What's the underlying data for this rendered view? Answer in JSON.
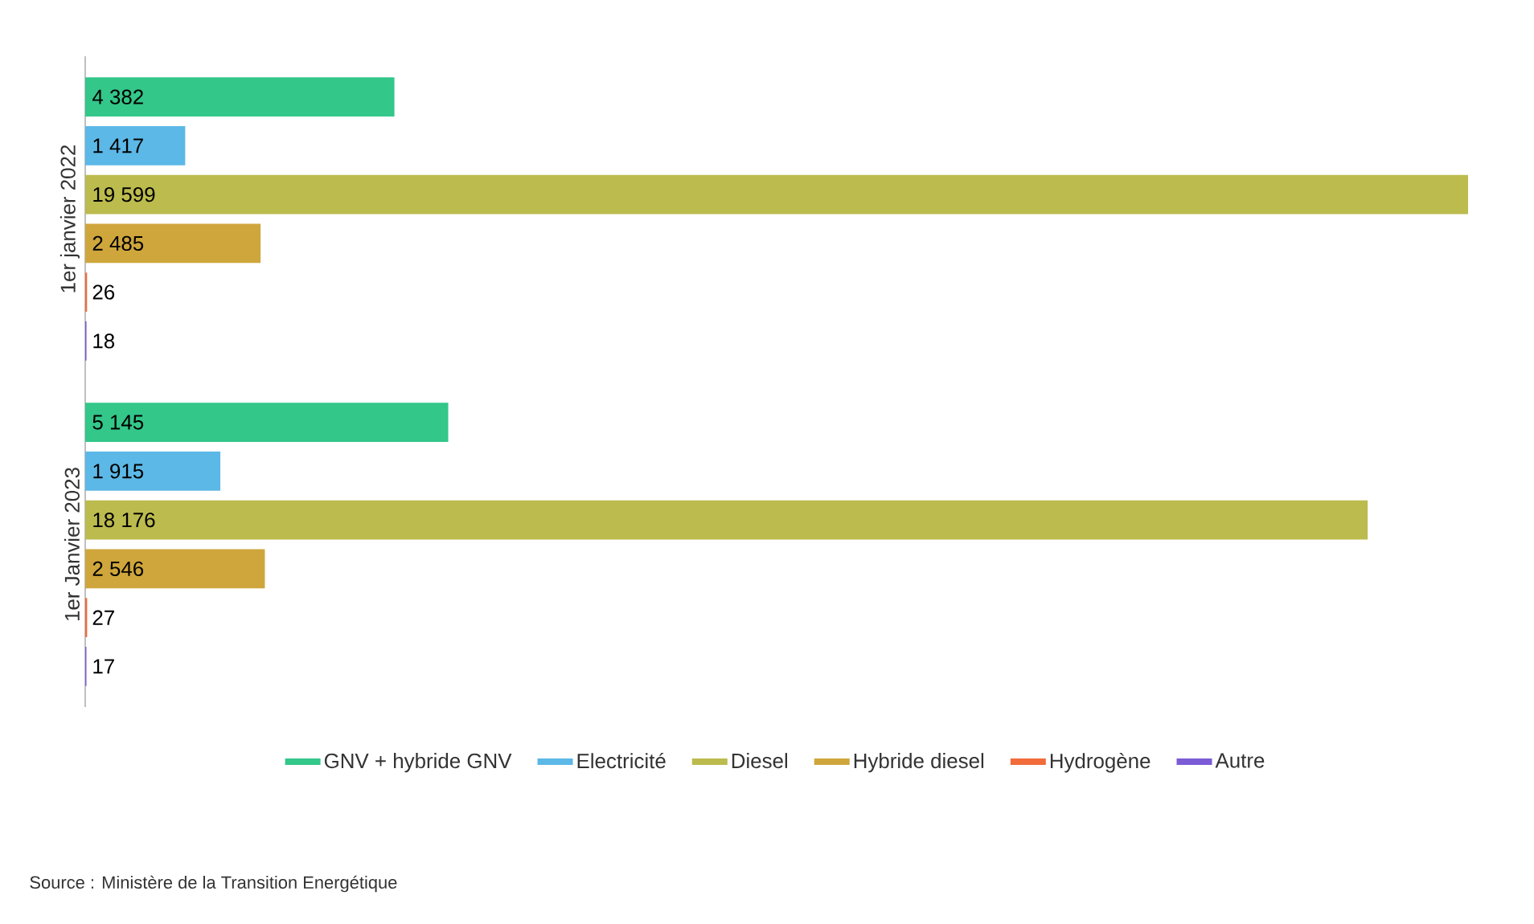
{
  "chart_data": {
    "type": "bar",
    "orientation": "horizontal",
    "categories": [
      "1er janvier 2022",
      "1er Janvier 2023"
    ],
    "series": [
      {
        "name": "GNV + hybride GNV",
        "color": "#33c78a",
        "values": [
          4382,
          5145
        ],
        "value_labels": [
          "4 382",
          "5 145"
        ]
      },
      {
        "name": "Electricité",
        "color": "#5cb8e6",
        "values": [
          1417,
          1915
        ],
        "value_labels": [
          "1 417",
          "1 915"
        ]
      },
      {
        "name": "Diesel",
        "color": "#bcbb4e",
        "values": [
          19599,
          18176
        ],
        "value_labels": [
          "19 599",
          "18 176"
        ]
      },
      {
        "name": "Hybride diesel",
        "color": "#cfa63c",
        "values": [
          2485,
          2546
        ],
        "value_labels": [
          "2 485",
          "2 546"
        ]
      },
      {
        "name": "Hydrogène",
        "color": "#f26b3a",
        "values": [
          26,
          27
        ],
        "value_labels": [
          "26",
          "27"
        ]
      },
      {
        "name": "Autre",
        "color": "#7b5bd6",
        "values": [
          18,
          17
        ],
        "value_labels": [
          "18",
          "17"
        ]
      }
    ],
    "legend": "bottom",
    "tick_labels": "y",
    "annotations": [
      "Source : Ministère de la Transition Energétique"
    ]
  }
}
